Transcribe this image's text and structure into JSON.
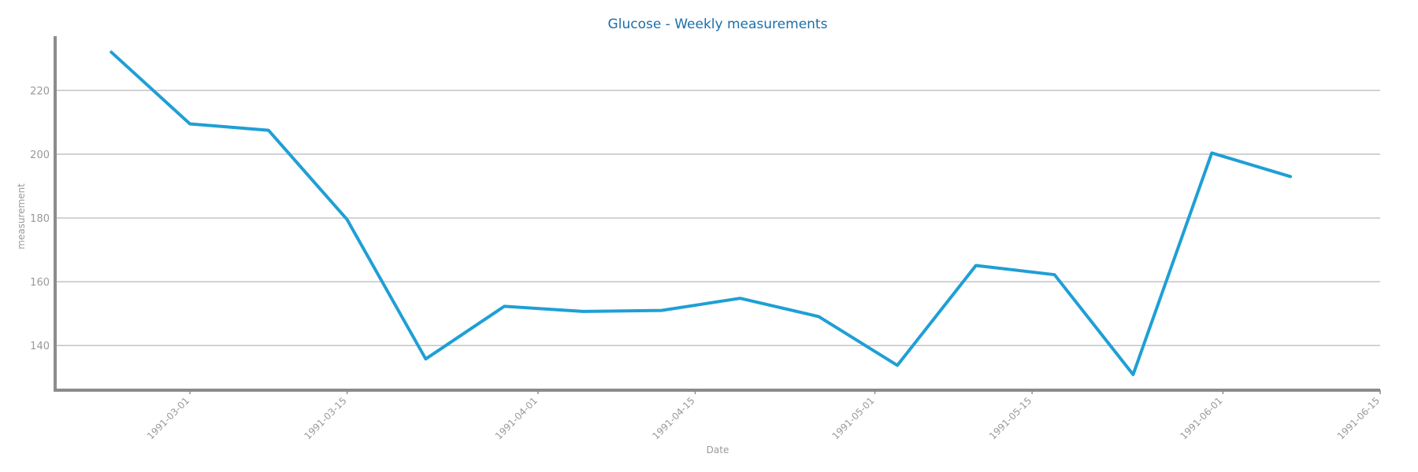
{
  "chart_data": {
    "type": "line",
    "title": "Glucose - Weekly measurements",
    "xlabel": "Date",
    "ylabel": "measurement",
    "x_range": [
      "1991-02-17",
      "1991-06-15"
    ],
    "ylim": [
      126,
      237
    ],
    "y_ticks": [
      140,
      160,
      180,
      200,
      220
    ],
    "x_ticks": [
      "1991-03-01",
      "1991-03-15",
      "1991-04-01",
      "1991-04-15",
      "1991-05-01",
      "1991-05-15",
      "1991-06-01",
      "1991-06-15"
    ],
    "grid": "horizontal",
    "colors": {
      "line": "#1f9fd5",
      "title": "#1a6fa8",
      "axis": "#8c8c8c",
      "grid": "#c3c3c8",
      "text": "#999999"
    },
    "series": [
      {
        "x": [
          "1991-02-22",
          "1991-03-01",
          "1991-03-08",
          "1991-03-15",
          "1991-03-22",
          "1991-03-29",
          "1991-04-05",
          "1991-04-12",
          "1991-04-19",
          "1991-04-26",
          "1991-05-03",
          "1991-05-10",
          "1991-05-17",
          "1991-05-24",
          "1991-05-31",
          "1991-06-07"
        ],
        "values": [
          232,
          209.5,
          207.5,
          179.5,
          135.8,
          152.3,
          150.7,
          151.0,
          154.8,
          149.1,
          133.8,
          165.1,
          162.2,
          130.9,
          200.4,
          193.0
        ]
      }
    ]
  }
}
